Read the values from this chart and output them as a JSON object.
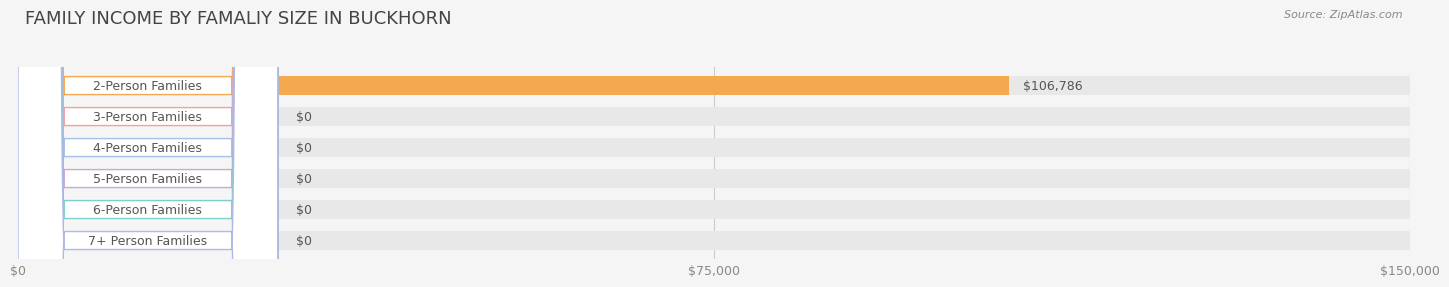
{
  "title": "FAMILY INCOME BY FAMALIY SIZE IN BUCKHORN",
  "source": "Source: ZipAtlas.com",
  "categories": [
    "2-Person Families",
    "3-Person Families",
    "4-Person Families",
    "5-Person Families",
    "6-Person Families",
    "7+ Person Families"
  ],
  "values": [
    106786,
    0,
    0,
    0,
    0,
    0
  ],
  "bar_colors": [
    "#f5a94e",
    "#f4a0a0",
    "#a8c0e8",
    "#c9a8d4",
    "#7ececa",
    "#b0b8e8"
  ],
  "label_colors": [
    "#f5a94e",
    "#f4a0a0",
    "#a8c0e8",
    "#c9a8d4",
    "#7ececa",
    "#b0b8e8"
  ],
  "value_labels": [
    "$106,786",
    "$0",
    "$0",
    "$0",
    "$0",
    "$0"
  ],
  "xlim": [
    0,
    150000
  ],
  "xticks": [
    0,
    75000,
    150000
  ],
  "xtick_labels": [
    "$0",
    "$75,000",
    "$150,000"
  ],
  "bg_color": "#f5f5f5",
  "bar_bg_color": "#e8e8e8",
  "title_fontsize": 13,
  "tick_fontsize": 9,
  "label_fontsize": 9,
  "value_fontsize": 9,
  "source_fontsize": 8
}
